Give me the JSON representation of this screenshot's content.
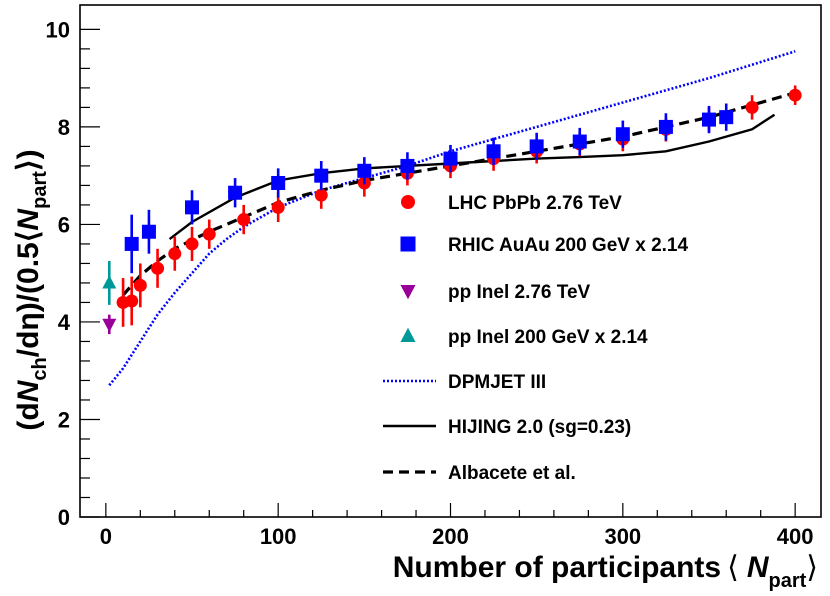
{
  "chart_data": {
    "type": "scatter",
    "title": "",
    "xlabel": "Number of participants ⟨ N_part⟩",
    "ylabel": "(dN_ch/dη)/(0.5⟨N_part⟩)",
    "xlim": [
      -15,
      415
    ],
    "ylim": [
      0,
      10.5
    ],
    "x_ticks": [
      0,
      100,
      200,
      300,
      400
    ],
    "y_ticks": [
      0,
      2,
      4,
      6,
      8,
      10
    ],
    "grid": false,
    "legend_position": "right-center",
    "series": [
      {
        "name": "LHC PbPb 2.76 TeV",
        "kind": "points",
        "marker": "circle",
        "color": "#ff0000",
        "x": [
          10,
          15,
          20,
          30,
          40,
          50,
          60,
          80,
          100,
          125,
          150,
          175,
          200,
          225,
          250,
          275,
          300,
          325,
          350,
          375,
          400
        ],
        "y": [
          4.4,
          4.43,
          4.75,
          5.1,
          5.4,
          5.6,
          5.8,
          6.1,
          6.35,
          6.6,
          6.85,
          7.05,
          7.2,
          7.35,
          7.5,
          7.65,
          7.75,
          7.95,
          8.15,
          8.4,
          8.65
        ],
        "err": [
          0.5,
          0.5,
          0.45,
          0.4,
          0.35,
          0.35,
          0.3,
          0.3,
          0.3,
          0.28,
          0.28,
          0.25,
          0.25,
          0.25,
          0.25,
          0.25,
          0.25,
          0.25,
          0.25,
          0.25,
          0.2
        ]
      },
      {
        "name": "RHIC AuAu 200 GeV x 2.14",
        "kind": "points",
        "marker": "square",
        "color": "#0000ff",
        "x": [
          15,
          25,
          50,
          75,
          100,
          125,
          150,
          175,
          200,
          225,
          250,
          275,
          300,
          325,
          350,
          360
        ],
        "y": [
          5.6,
          5.85,
          6.35,
          6.65,
          6.85,
          7.0,
          7.1,
          7.2,
          7.35,
          7.5,
          7.6,
          7.7,
          7.85,
          8.0,
          8.15,
          8.2
        ],
        "err": [
          0.6,
          0.45,
          0.35,
          0.3,
          0.3,
          0.3,
          0.28,
          0.28,
          0.28,
          0.28,
          0.28,
          0.28,
          0.28,
          0.28,
          0.28,
          0.28
        ]
      },
      {
        "name": "pp Inel 2.76 TeV",
        "kind": "points",
        "marker": "triangle-down",
        "color": "#990099",
        "x": [
          2
        ],
        "y": [
          3.95
        ],
        "err": [
          0.2
        ]
      },
      {
        "name": "pp Inel 200 GeV x 2.14",
        "kind": "points",
        "marker": "triangle-up",
        "color": "#009999",
        "x": [
          2
        ],
        "y": [
          4.8
        ],
        "err": [
          0.45
        ]
      },
      {
        "name": "DPMJET III",
        "kind": "line",
        "style": "dotted",
        "color": "#0000ff",
        "x": [
          2,
          10,
          20,
          30,
          40,
          50,
          60,
          70,
          80,
          100,
          125,
          150,
          175,
          200,
          250,
          300,
          350,
          400
        ],
        "y": [
          2.7,
          3.05,
          3.6,
          4.15,
          4.6,
          5.0,
          5.4,
          5.7,
          5.95,
          6.35,
          6.7,
          6.95,
          7.2,
          7.5,
          8.0,
          8.5,
          9.0,
          9.55
        ]
      },
      {
        "name": "HIJING 2.0 (sg=0.23)",
        "kind": "line",
        "style": "solid",
        "color": "#000000",
        "x": [
          37,
          50,
          75,
          100,
          125,
          150,
          175,
          200,
          225,
          250,
          275,
          300,
          325,
          350,
          375,
          388
        ],
        "y": [
          5.7,
          6.05,
          6.55,
          6.9,
          7.05,
          7.15,
          7.2,
          7.25,
          7.3,
          7.35,
          7.38,
          7.42,
          7.5,
          7.7,
          7.95,
          8.25
        ]
      },
      {
        "name": "Albacete et al.",
        "kind": "line",
        "style": "dashed",
        "color": "#000000",
        "x": [
          10,
          20,
          30,
          40,
          50,
          60,
          80,
          100,
          125,
          150,
          175,
          200,
          225,
          250,
          275,
          300,
          325,
          350,
          375,
          400
        ],
        "y": [
          4.55,
          4.95,
          5.25,
          5.5,
          5.68,
          5.85,
          6.15,
          6.45,
          6.7,
          6.9,
          7.05,
          7.2,
          7.35,
          7.5,
          7.65,
          7.8,
          8.0,
          8.2,
          8.45,
          8.7
        ]
      }
    ]
  }
}
